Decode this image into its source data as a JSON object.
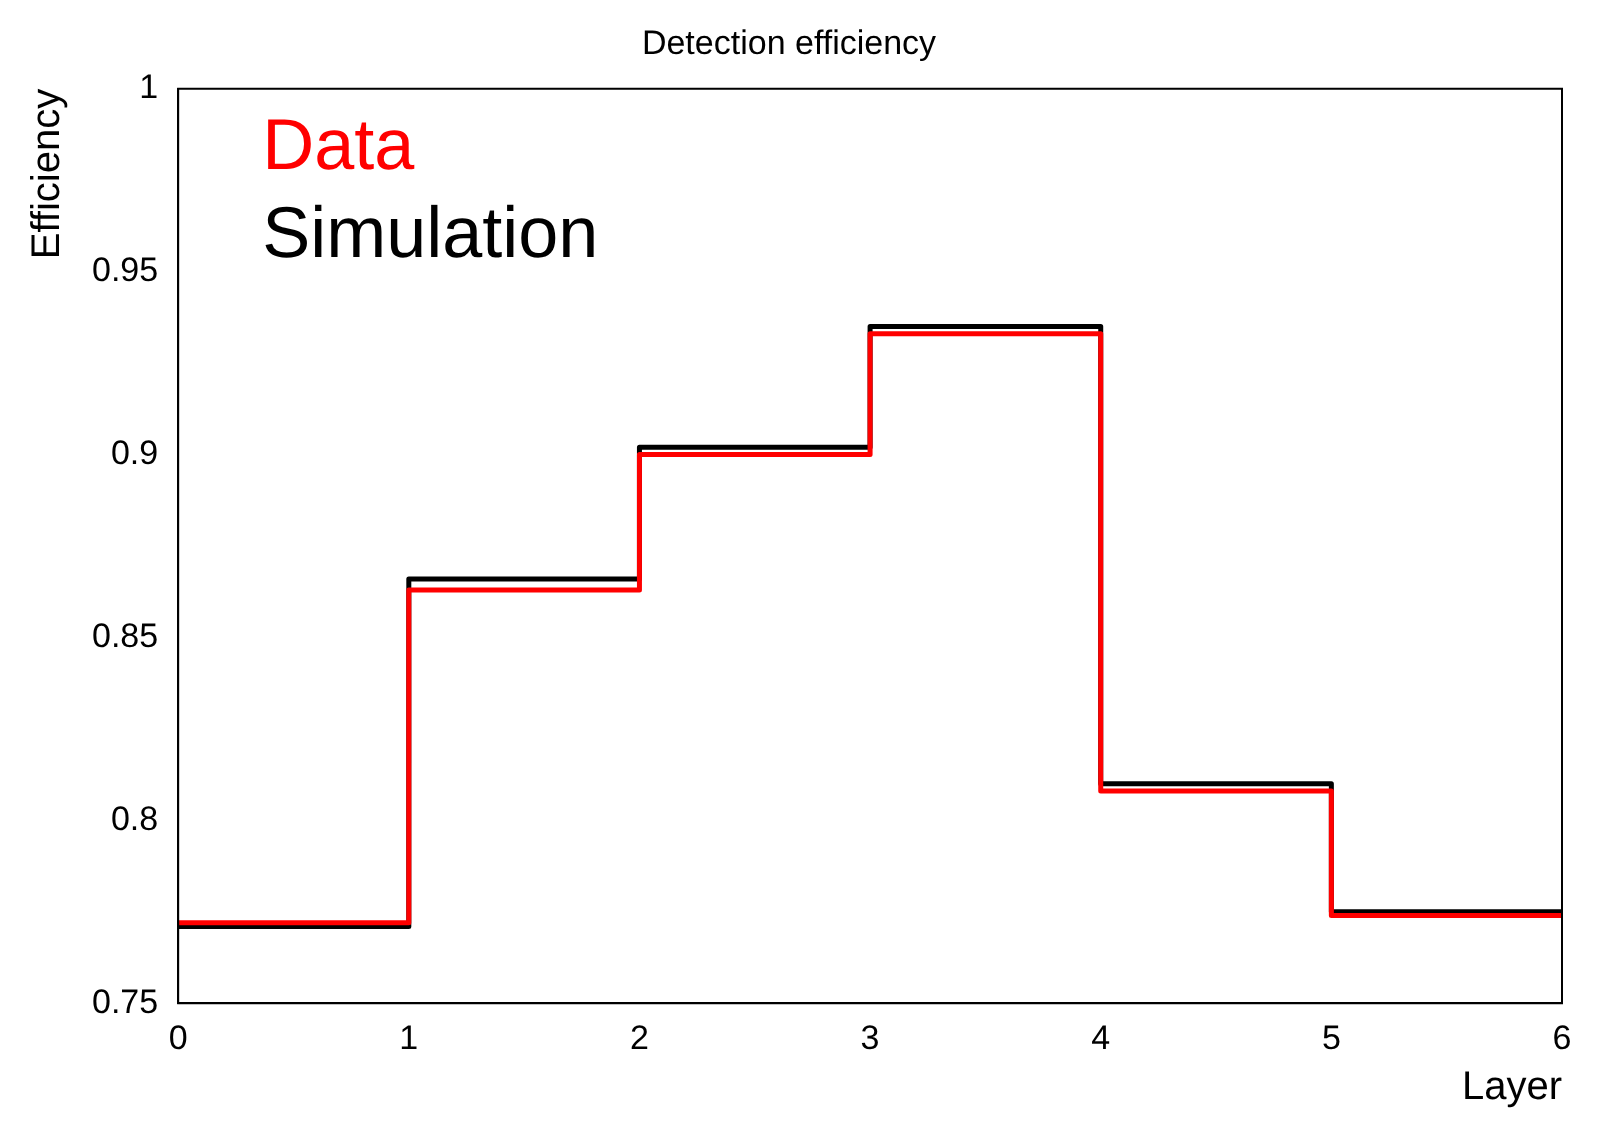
{
  "chart_data": {
    "type": "histogram",
    "title": "Detection efficiency",
    "xlabel": "Layer",
    "ylabel": "Efficiency",
    "bins": [
      0,
      1,
      2,
      3,
      4,
      5,
      6
    ],
    "series": [
      {
        "name": "Data",
        "color": "#ff0000",
        "values": [
          0.772,
          0.863,
          0.9,
          0.933,
          0.808,
          0.774
        ]
      },
      {
        "name": "Simulation",
        "color": "#000000",
        "values": [
          0.771,
          0.866,
          0.902,
          0.935,
          0.81,
          0.775
        ]
      }
    ],
    "xlim": [
      0,
      6
    ],
    "xticks": [
      0,
      1,
      2,
      3,
      4,
      5,
      6
    ],
    "ylim": [
      0.75,
      1
    ],
    "yticks": [
      0.75,
      0.8,
      0.85,
      0.9,
      0.95,
      1
    ],
    "grid": false,
    "legend": "top left"
  }
}
